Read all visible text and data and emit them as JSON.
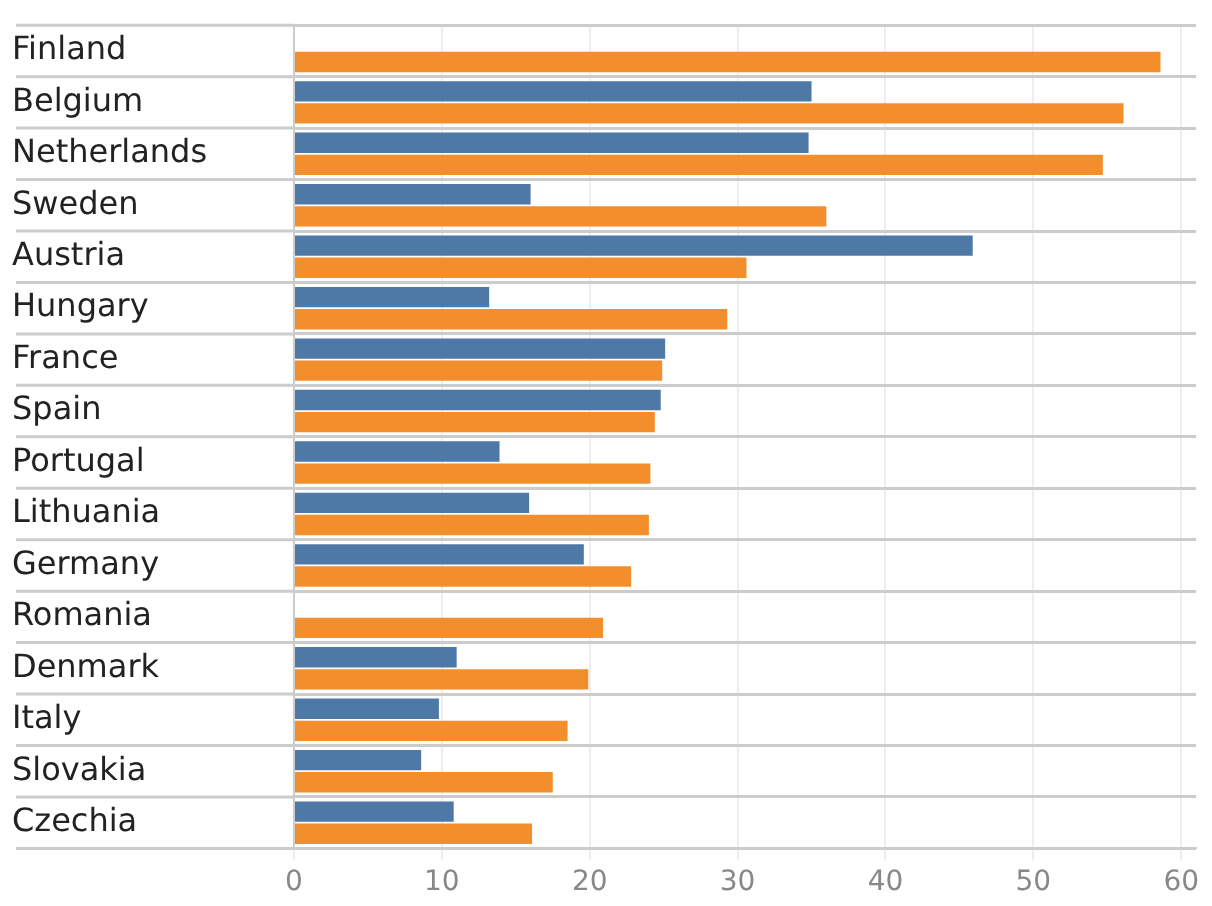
{
  "chart_data": {
    "type": "bar",
    "orientation": "horizontal",
    "categories": [
      "Finland",
      "Belgium",
      "Netherlands",
      "Sweden",
      "Austria",
      "Hungary",
      "France",
      "Spain",
      "Portugal",
      "Lithuania",
      "Germany",
      "Romania",
      "Denmark",
      "Italy",
      "Slovakia",
      "Czechia"
    ],
    "series": [
      {
        "color": "#4e79a7",
        "values": [
          null,
          35.0,
          34.8,
          16.0,
          45.9,
          13.2,
          25.1,
          24.8,
          13.9,
          15.9,
          19.6,
          null,
          11.0,
          9.8,
          8.6,
          10.8
        ]
      },
      {
        "color": "#f28e2b",
        "values": [
          58.6,
          56.1,
          54.7,
          36.0,
          30.6,
          29.3,
          24.9,
          24.4,
          24.1,
          24.0,
          22.8,
          20.9,
          19.9,
          18.5,
          17.5,
          16.1
        ]
      }
    ],
    "xlim": [
      0,
      61
    ],
    "xticks": [
      0,
      10,
      20,
      30,
      40,
      50,
      60
    ],
    "grid": true,
    "legend": false
  }
}
